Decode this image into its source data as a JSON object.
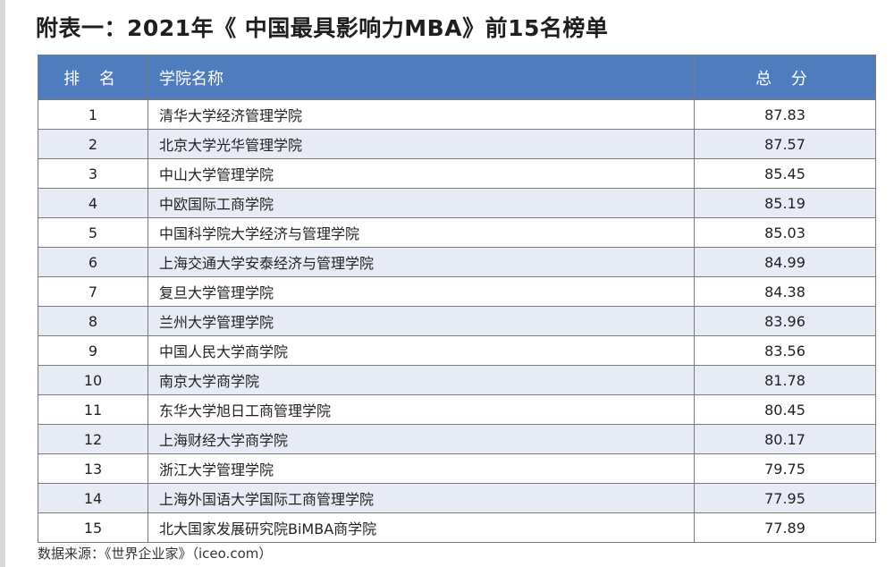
{
  "title": "附表一：2021年《 中国最具影响力MBA》前15名榜单",
  "table": {
    "headers": {
      "rank": "排 名",
      "name": "学院名称",
      "score": "总 分"
    },
    "rows": [
      {
        "rank": "1",
        "name": "清华大学经济管理学院",
        "score": "87.83"
      },
      {
        "rank": "2",
        "name": "北京大学光华管理学院",
        "score": "87.57"
      },
      {
        "rank": "3",
        "name": "中山大学管理学院",
        "score": "85.45"
      },
      {
        "rank": "4",
        "name": "中欧国际工商学院",
        "score": "85.19"
      },
      {
        "rank": "5",
        "name": "中国科学院大学经济与管理学院",
        "score": "85.03"
      },
      {
        "rank": "6",
        "name": "上海交通大学安泰经济与管理学院",
        "score": "84.99"
      },
      {
        "rank": "7",
        "name": "复旦大学管理学院",
        "score": "84.38"
      },
      {
        "rank": "8",
        "name": "兰州大学管理学院",
        "score": "83.96"
      },
      {
        "rank": "9",
        "name": "中国人民大学商学院",
        "score": "83.56"
      },
      {
        "rank": "10",
        "name": "南京大学商学院",
        "score": "81.78"
      },
      {
        "rank": "11",
        "name": "东华大学旭日工商管理学院",
        "score": "80.45"
      },
      {
        "rank": "12",
        "name": "上海财经大学商学院",
        "score": "80.17"
      },
      {
        "rank": "13",
        "name": "浙江大学管理学院",
        "score": "79.75"
      },
      {
        "rank": "14",
        "name": "上海外国语大学国际工商管理学院",
        "score": "77.95"
      },
      {
        "rank": "15",
        "name": "北大国家发展研究院BiMBA商学院",
        "score": "77.89"
      }
    ]
  },
  "source": "数据来源：《世界企业家》（iceo.com）",
  "colors": {
    "header_bg": "#4f7cbf",
    "alt_row_bg": "#e6ebf5"
  }
}
